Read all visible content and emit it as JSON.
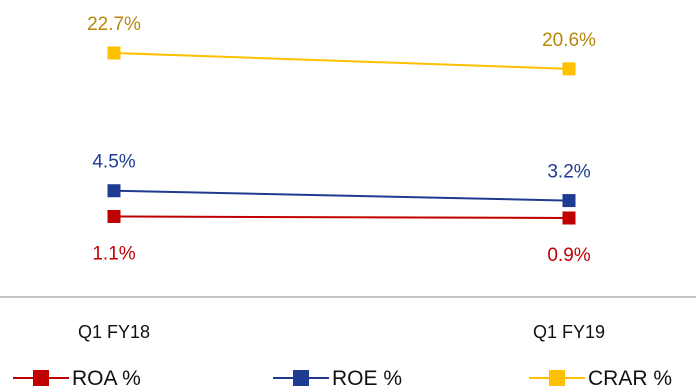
{
  "chart_data": {
    "type": "line",
    "categories": [
      "Q1 FY18",
      "Q1 FY19"
    ],
    "series": [
      {
        "name": "ROA %",
        "values": [
          1.1,
          0.9
        ],
        "labels": [
          "1.1%",
          "0.9%"
        ],
        "color": "#C00000",
        "label_color": "#C00000",
        "label_pos": "below"
      },
      {
        "name": "ROE %",
        "values": [
          4.5,
          3.2
        ],
        "labels": [
          "4.5%",
          "3.2%"
        ],
        "color": "#1F3A93",
        "label_color": "#1F3A93",
        "label_pos": "above"
      },
      {
        "name": "CRAR %",
        "values": [
          22.7,
          20.6
        ],
        "labels": [
          "22.7%",
          "20.6%"
        ],
        "color": "#FFC000",
        "label_color": "#B8860B",
        "label_pos": "above"
      }
    ],
    "grid": false,
    "legend": "bottom"
  }
}
